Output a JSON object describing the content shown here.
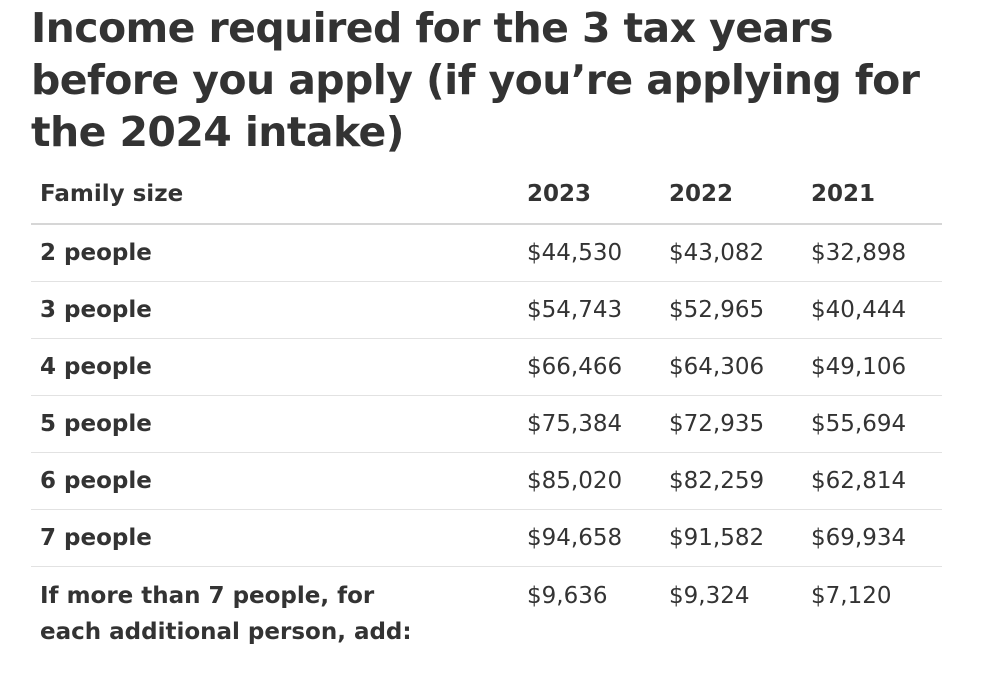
{
  "heading": "Income required for the 3 tax years before you apply (if you’re applying for the 2024 intake)",
  "table": {
    "headers": [
      "Family size",
      "2023",
      "2022",
      "2021"
    ],
    "rows": [
      {
        "label": "2 people",
        "y2023": "$44,530",
        "y2022": "$43,082",
        "y2021": "$32,898"
      },
      {
        "label": "3 people",
        "y2023": "$54,743",
        "y2022": "$52,965",
        "y2021": "$40,444"
      },
      {
        "label": "4 people",
        "y2023": "$66,466",
        "y2022": "$64,306",
        "y2021": "$49,106"
      },
      {
        "label": "5 people",
        "y2023": "$75,384",
        "y2022": "$72,935",
        "y2021": "$55,694"
      },
      {
        "label": "6 people",
        "y2023": "$85,020",
        "y2022": "$82,259",
        "y2021": "$62,814"
      },
      {
        "label": "7 people",
        "y2023": "$94,658",
        "y2022": "$91,582",
        "y2021": "$69,934"
      },
      {
        "label_line1": "If more than 7 people, for",
        "label_line2": "each additional person, add:",
        "y2023": "$9,636",
        "y2022": "$9,324",
        "y2021": "$7,120"
      }
    ]
  }
}
